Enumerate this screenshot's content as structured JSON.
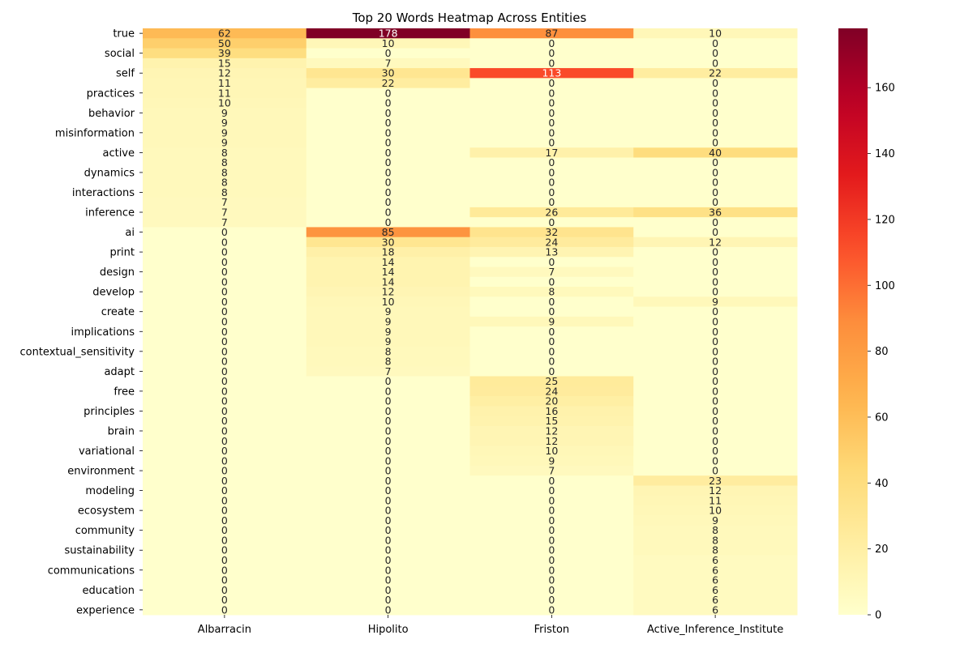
{
  "chart_data": {
    "type": "heatmap",
    "title": "Top 20 Words Heatmap Across Entities",
    "columns": [
      "Albarracin",
      "Hipolito",
      "Friston",
      "Active_Inference_Institute"
    ],
    "rows": [
      {
        "word": "true",
        "show_label": true,
        "values": [
          62,
          178,
          87,
          10
        ]
      },
      {
        "word": "",
        "show_label": false,
        "values": [
          50,
          10,
          0,
          0
        ]
      },
      {
        "word": "social",
        "show_label": true,
        "values": [
          39,
          0,
          0,
          0
        ]
      },
      {
        "word": "",
        "show_label": false,
        "values": [
          15,
          7,
          0,
          0
        ]
      },
      {
        "word": "self",
        "show_label": true,
        "values": [
          12,
          30,
          113,
          22
        ]
      },
      {
        "word": "",
        "show_label": false,
        "values": [
          11,
          22,
          0,
          0
        ]
      },
      {
        "word": "practices",
        "show_label": true,
        "values": [
          11,
          0,
          0,
          0
        ]
      },
      {
        "word": "",
        "show_label": false,
        "values": [
          10,
          0,
          0,
          0
        ]
      },
      {
        "word": "behavior",
        "show_label": true,
        "values": [
          9,
          0,
          0,
          0
        ]
      },
      {
        "word": "",
        "show_label": false,
        "values": [
          9,
          0,
          0,
          0
        ]
      },
      {
        "word": "misinformation",
        "show_label": true,
        "values": [
          9,
          0,
          0,
          0
        ]
      },
      {
        "word": "",
        "show_label": false,
        "values": [
          9,
          0,
          0,
          0
        ]
      },
      {
        "word": "active",
        "show_label": true,
        "values": [
          8,
          0,
          17,
          40
        ]
      },
      {
        "word": "",
        "show_label": false,
        "values": [
          8,
          0,
          0,
          0
        ]
      },
      {
        "word": "dynamics",
        "show_label": true,
        "values": [
          8,
          0,
          0,
          0
        ]
      },
      {
        "word": "",
        "show_label": false,
        "values": [
          8,
          0,
          0,
          0
        ]
      },
      {
        "word": "interactions",
        "show_label": true,
        "values": [
          8,
          0,
          0,
          0
        ]
      },
      {
        "word": "",
        "show_label": false,
        "values": [
          7,
          0,
          0,
          0
        ]
      },
      {
        "word": "inference",
        "show_label": true,
        "values": [
          7,
          0,
          26,
          36
        ]
      },
      {
        "word": "",
        "show_label": false,
        "values": [
          7,
          0,
          0,
          0
        ]
      },
      {
        "word": "ai",
        "show_label": true,
        "values": [
          0,
          85,
          32,
          0
        ]
      },
      {
        "word": "",
        "show_label": false,
        "values": [
          0,
          30,
          24,
          12
        ]
      },
      {
        "word": "print",
        "show_label": true,
        "values": [
          0,
          18,
          13,
          0
        ]
      },
      {
        "word": "",
        "show_label": false,
        "values": [
          0,
          14,
          0,
          0
        ]
      },
      {
        "word": "design",
        "show_label": true,
        "values": [
          0,
          14,
          7,
          0
        ]
      },
      {
        "word": "",
        "show_label": false,
        "values": [
          0,
          14,
          0,
          0
        ]
      },
      {
        "word": "develop",
        "show_label": true,
        "values": [
          0,
          12,
          8,
          0
        ]
      },
      {
        "word": "",
        "show_label": false,
        "values": [
          0,
          10,
          0,
          9
        ]
      },
      {
        "word": "create",
        "show_label": true,
        "values": [
          0,
          9,
          0,
          0
        ]
      },
      {
        "word": "",
        "show_label": false,
        "values": [
          0,
          9,
          9,
          0
        ]
      },
      {
        "word": "implications",
        "show_label": true,
        "values": [
          0,
          9,
          0,
          0
        ]
      },
      {
        "word": "",
        "show_label": false,
        "values": [
          0,
          9,
          0,
          0
        ]
      },
      {
        "word": "contextual_sensitivity",
        "show_label": true,
        "values": [
          0,
          8,
          0,
          0
        ]
      },
      {
        "word": "",
        "show_label": false,
        "values": [
          0,
          8,
          0,
          0
        ]
      },
      {
        "word": "adapt",
        "show_label": true,
        "values": [
          0,
          7,
          0,
          0
        ]
      },
      {
        "word": "",
        "show_label": false,
        "values": [
          0,
          0,
          25,
          0
        ]
      },
      {
        "word": "free",
        "show_label": true,
        "values": [
          0,
          0,
          24,
          0
        ]
      },
      {
        "word": "",
        "show_label": false,
        "values": [
          0,
          0,
          20,
          0
        ]
      },
      {
        "word": "principles",
        "show_label": true,
        "values": [
          0,
          0,
          16,
          0
        ]
      },
      {
        "word": "",
        "show_label": false,
        "values": [
          0,
          0,
          15,
          0
        ]
      },
      {
        "word": "brain",
        "show_label": true,
        "values": [
          0,
          0,
          12,
          0
        ]
      },
      {
        "word": "",
        "show_label": false,
        "values": [
          0,
          0,
          12,
          0
        ]
      },
      {
        "word": "variational",
        "show_label": true,
        "values": [
          0,
          0,
          10,
          0
        ]
      },
      {
        "word": "",
        "show_label": false,
        "values": [
          0,
          0,
          9,
          0
        ]
      },
      {
        "word": "environment",
        "show_label": true,
        "values": [
          0,
          0,
          7,
          0
        ]
      },
      {
        "word": "",
        "show_label": false,
        "values": [
          0,
          0,
          0,
          23
        ]
      },
      {
        "word": "modeling",
        "show_label": true,
        "values": [
          0,
          0,
          0,
          12
        ]
      },
      {
        "word": "",
        "show_label": false,
        "values": [
          0,
          0,
          0,
          11
        ]
      },
      {
        "word": "ecosystem",
        "show_label": true,
        "values": [
          0,
          0,
          0,
          10
        ]
      },
      {
        "word": "",
        "show_label": false,
        "values": [
          0,
          0,
          0,
          9
        ]
      },
      {
        "word": "community",
        "show_label": true,
        "values": [
          0,
          0,
          0,
          8
        ]
      },
      {
        "word": "",
        "show_label": false,
        "values": [
          0,
          0,
          0,
          8
        ]
      },
      {
        "word": "sustainability",
        "show_label": true,
        "values": [
          0,
          0,
          0,
          8
        ]
      },
      {
        "word": "",
        "show_label": false,
        "values": [
          0,
          0,
          0,
          6
        ]
      },
      {
        "word": "communications",
        "show_label": true,
        "values": [
          0,
          0,
          0,
          6
        ]
      },
      {
        "word": "",
        "show_label": false,
        "values": [
          0,
          0,
          0,
          6
        ]
      },
      {
        "word": "education",
        "show_label": true,
        "values": [
          0,
          0,
          0,
          6
        ]
      },
      {
        "word": "",
        "show_label": false,
        "values": [
          0,
          0,
          0,
          6
        ]
      },
      {
        "word": "experience",
        "show_label": true,
        "values": [
          0,
          0,
          0,
          6
        ]
      }
    ],
    "colormap": "YlOrRd",
    "value_range": [
      0,
      178
    ],
    "colorbar_ticks": [
      0,
      20,
      40,
      60,
      80,
      100,
      120,
      140,
      160
    ],
    "annotations": true
  }
}
